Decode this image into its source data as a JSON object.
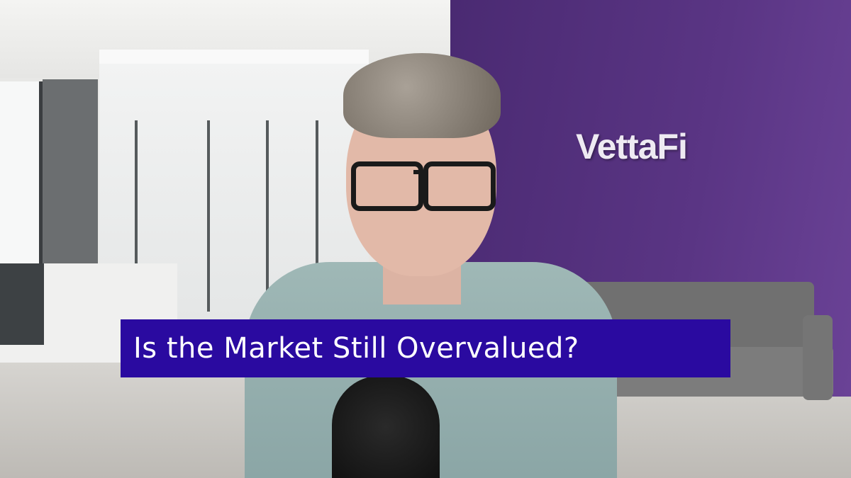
{
  "scene": {
    "logo_text": "VettaFi",
    "wall_color": "#5a3584"
  },
  "banner": {
    "title": "Is the Market Still Overvalued?",
    "background_color": "#2a0aa0",
    "text_color": "#ffffff"
  }
}
